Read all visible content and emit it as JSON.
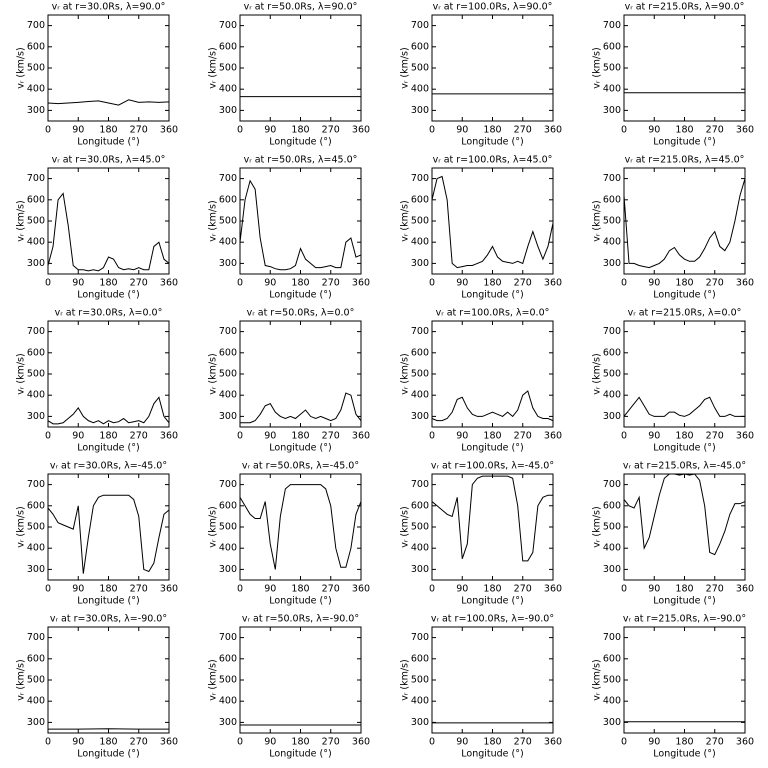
{
  "chart_data": [
    {
      "type": "line",
      "title": "vᵣ at r=30.0Rs, λ=90.0°",
      "x_label": "Longitude (°)",
      "y_label": "vᵣ (km/s)",
      "x": [
        0,
        30,
        60,
        90,
        120,
        150,
        180,
        210,
        240,
        270,
        300,
        330,
        360
      ],
      "values": [
        335,
        332,
        335,
        338,
        342,
        345,
        335,
        325,
        350,
        338,
        340,
        338,
        340
      ],
      "color": "#000000",
      "xlim": [
        0,
        360
      ],
      "ylim": [
        250,
        750
      ],
      "xticks": [
        0,
        90,
        180,
        270,
        360
      ],
      "yticks": [
        300,
        400,
        500,
        600,
        700
      ]
    },
    {
      "type": "line",
      "title": "vᵣ at r=50.0Rs, λ=90.0°",
      "x_label": "Longitude (°)",
      "y_label": "vᵣ (km/s)",
      "x": [
        0,
        360
      ],
      "values": [
        365,
        365
      ],
      "color": "#000000",
      "xlim": [
        0,
        360
      ],
      "ylim": [
        250,
        750
      ],
      "xticks": [
        0,
        90,
        180,
        270,
        360
      ],
      "yticks": [
        300,
        400,
        500,
        600,
        700
      ]
    },
    {
      "type": "line",
      "title": "vᵣ at r=100.0Rs, λ=90.0°",
      "x_label": "Longitude (°)",
      "y_label": "vᵣ (km/s)",
      "x": [
        0,
        360
      ],
      "values": [
        378,
        378
      ],
      "color": "#000000",
      "xlim": [
        0,
        360
      ],
      "ylim": [
        250,
        750
      ],
      "xticks": [
        0,
        90,
        180,
        270,
        360
      ],
      "yticks": [
        300,
        400,
        500,
        600,
        700
      ]
    },
    {
      "type": "line",
      "title": "vᵣ at r=215.0Rs, λ=90.0°",
      "x_label": "Longitude (°)",
      "y_label": "vᵣ (km/s)",
      "x": [
        0,
        360
      ],
      "values": [
        383,
        383
      ],
      "color": "#000000",
      "xlim": [
        0,
        360
      ],
      "ylim": [
        250,
        750
      ],
      "xticks": [
        0,
        90,
        180,
        270,
        360
      ],
      "yticks": [
        300,
        400,
        500,
        600,
        700
      ]
    },
    {
      "type": "line",
      "title": "vᵣ at r=30.0Rs, λ=45.0°",
      "x_label": "Longitude (°)",
      "y_label": "vᵣ (km/s)",
      "x": [
        0,
        15,
        30,
        45,
        60,
        75,
        90,
        105,
        120,
        135,
        150,
        165,
        180,
        195,
        210,
        225,
        240,
        255,
        270,
        285,
        300,
        315,
        330,
        345,
        360
      ],
      "values": [
        290,
        380,
        600,
        630,
        480,
        290,
        270,
        270,
        265,
        270,
        265,
        280,
        330,
        320,
        280,
        270,
        275,
        270,
        280,
        270,
        270,
        380,
        400,
        320,
        300
      ],
      "color": "#000000",
      "xlim": [
        0,
        360
      ],
      "ylim": [
        250,
        750
      ],
      "xticks": [
        0,
        90,
        180,
        270,
        360
      ],
      "yticks": [
        300,
        400,
        500,
        600,
        700
      ]
    },
    {
      "type": "line",
      "title": "vᵣ at r=50.0Rs, λ=45.0°",
      "x_label": "Longitude (°)",
      "y_label": "vᵣ (km/s)",
      "x": [
        0,
        15,
        30,
        45,
        60,
        75,
        90,
        105,
        120,
        135,
        150,
        165,
        180,
        195,
        210,
        225,
        240,
        255,
        270,
        285,
        300,
        315,
        330,
        345,
        360
      ],
      "values": [
        400,
        600,
        690,
        650,
        420,
        290,
        285,
        275,
        270,
        270,
        275,
        290,
        370,
        320,
        300,
        280,
        280,
        285,
        290,
        280,
        280,
        400,
        420,
        330,
        340
      ],
      "color": "#000000",
      "xlim": [
        0,
        360
      ],
      "ylim": [
        250,
        750
      ],
      "xticks": [
        0,
        90,
        180,
        270,
        360
      ],
      "yticks": [
        300,
        400,
        500,
        600,
        700
      ]
    },
    {
      "type": "line",
      "title": "vᵣ at r=100.0Rs, λ=45.0°",
      "x_label": "Longitude (°)",
      "y_label": "vᵣ (km/s)",
      "x": [
        0,
        15,
        30,
        45,
        60,
        75,
        90,
        105,
        120,
        135,
        150,
        165,
        180,
        195,
        210,
        225,
        240,
        255,
        270,
        285,
        300,
        315,
        330,
        345,
        360
      ],
      "values": [
        600,
        700,
        710,
        600,
        300,
        280,
        285,
        290,
        290,
        300,
        310,
        340,
        380,
        330,
        310,
        305,
        300,
        310,
        300,
        380,
        450,
        380,
        320,
        380,
        490
      ],
      "color": "#000000",
      "xlim": [
        0,
        360
      ],
      "ylim": [
        250,
        750
      ],
      "xticks": [
        0,
        90,
        180,
        270,
        360
      ],
      "yticks": [
        300,
        400,
        500,
        600,
        700
      ]
    },
    {
      "type": "line",
      "title": "vᵣ at r=215.0Rs, λ=45.0°",
      "x_label": "Longitude (°)",
      "y_label": "vᵣ (km/s)",
      "x": [
        0,
        15,
        30,
        45,
        60,
        75,
        90,
        105,
        120,
        135,
        150,
        165,
        180,
        195,
        210,
        225,
        240,
        255,
        270,
        285,
        300,
        315,
        330,
        345,
        360
      ],
      "values": [
        620,
        300,
        300,
        290,
        285,
        280,
        290,
        300,
        320,
        360,
        375,
        340,
        320,
        310,
        310,
        330,
        370,
        420,
        450,
        380,
        360,
        400,
        500,
        620,
        700
      ],
      "color": "#000000",
      "xlim": [
        0,
        360
      ],
      "ylim": [
        250,
        750
      ],
      "xticks": [
        0,
        90,
        180,
        270,
        360
      ],
      "yticks": [
        300,
        400,
        500,
        600,
        700
      ]
    },
    {
      "type": "line",
      "title": "vᵣ at r=30.0Rs, λ=0.0°",
      "x_label": "Longitude (°)",
      "y_label": "vᵣ (km/s)",
      "x": [
        0,
        15,
        30,
        45,
        60,
        75,
        90,
        105,
        120,
        135,
        150,
        165,
        180,
        195,
        210,
        225,
        240,
        255,
        270,
        285,
        300,
        315,
        330,
        345,
        360
      ],
      "values": [
        280,
        265,
        265,
        270,
        290,
        310,
        340,
        300,
        280,
        270,
        280,
        265,
        280,
        270,
        275,
        290,
        270,
        275,
        280,
        270,
        300,
        360,
        390,
        300,
        270
      ],
      "color": "#000000",
      "xlim": [
        0,
        360
      ],
      "ylim": [
        250,
        750
      ],
      "xticks": [
        0,
        90,
        180,
        270,
        360
      ],
      "yticks": [
        300,
        400,
        500,
        600,
        700
      ]
    },
    {
      "type": "line",
      "title": "vᵣ at r=50.0Rs, λ=0.0°",
      "x_label": "Longitude (°)",
      "y_label": "vᵣ (km/s)",
      "x": [
        0,
        15,
        30,
        45,
        60,
        75,
        90,
        105,
        120,
        135,
        150,
        165,
        180,
        195,
        210,
        225,
        240,
        255,
        270,
        285,
        300,
        315,
        330,
        345,
        360
      ],
      "values": [
        270,
        270,
        270,
        280,
        310,
        350,
        360,
        320,
        300,
        290,
        300,
        290,
        310,
        330,
        300,
        290,
        300,
        290,
        280,
        290,
        330,
        410,
        400,
        310,
        280
      ],
      "color": "#000000",
      "xlim": [
        0,
        360
      ],
      "ylim": [
        250,
        750
      ],
      "xticks": [
        0,
        90,
        180,
        270,
        360
      ],
      "yticks": [
        300,
        400,
        500,
        600,
        700
      ]
    },
    {
      "type": "line",
      "title": "vᵣ at r=100.0Rs, λ=0.0°",
      "x_label": "Longitude (°)",
      "y_label": "vᵣ (km/s)",
      "x": [
        0,
        15,
        30,
        45,
        60,
        75,
        90,
        105,
        120,
        135,
        150,
        165,
        180,
        195,
        210,
        225,
        240,
        255,
        270,
        285,
        300,
        315,
        330,
        345,
        360
      ],
      "values": [
        290,
        280,
        280,
        290,
        320,
        380,
        390,
        340,
        310,
        300,
        300,
        310,
        320,
        310,
        300,
        320,
        300,
        330,
        400,
        420,
        340,
        300,
        290,
        290,
        280
      ],
      "color": "#000000",
      "xlim": [
        0,
        360
      ],
      "ylim": [
        250,
        750
      ],
      "xticks": [
        0,
        90,
        180,
        270,
        360
      ],
      "yticks": [
        300,
        400,
        500,
        600,
        700
      ]
    },
    {
      "type": "line",
      "title": "vᵣ at r=215.0Rs, λ=0.0°",
      "x_label": "Longitude (°)",
      "y_label": "vᵣ (km/s)",
      "x": [
        0,
        15,
        30,
        45,
        60,
        75,
        90,
        105,
        120,
        135,
        150,
        165,
        180,
        195,
        210,
        225,
        240,
        255,
        270,
        285,
        300,
        315,
        330,
        345,
        360
      ],
      "values": [
        300,
        330,
        360,
        390,
        350,
        310,
        300,
        300,
        300,
        320,
        320,
        305,
        300,
        310,
        330,
        350,
        380,
        390,
        340,
        300,
        300,
        310,
        300,
        300,
        300
      ],
      "color": "#000000",
      "xlim": [
        0,
        360
      ],
      "ylim": [
        250,
        750
      ],
      "xticks": [
        0,
        90,
        180,
        270,
        360
      ],
      "yticks": [
        300,
        400,
        500,
        600,
        700
      ]
    },
    {
      "type": "line",
      "title": "vᵣ at r=30.0Rs, λ=-45.0°",
      "x_label": "Longitude (°)",
      "y_label": "vᵣ (km/s)",
      "x": [
        0,
        15,
        30,
        45,
        60,
        75,
        90,
        105,
        120,
        135,
        150,
        165,
        180,
        195,
        210,
        225,
        240,
        255,
        270,
        285,
        300,
        315,
        330,
        345,
        360
      ],
      "values": [
        590,
        560,
        520,
        510,
        500,
        490,
        600,
        280,
        450,
        600,
        640,
        650,
        650,
        650,
        650,
        650,
        650,
        630,
        550,
        300,
        290,
        330,
        450,
        560,
        580
      ],
      "color": "#000000",
      "xlim": [
        0,
        360
      ],
      "ylim": [
        250,
        750
      ],
      "xticks": [
        0,
        90,
        180,
        270,
        360
      ],
      "yticks": [
        300,
        400,
        500,
        600,
        700
      ]
    },
    {
      "type": "line",
      "title": "vᵣ at r=50.0Rs, λ=-45.0°",
      "x_label": "Longitude (°)",
      "y_label": "vᵣ (km/s)",
      "x": [
        0,
        15,
        30,
        45,
        60,
        75,
        90,
        105,
        120,
        135,
        150,
        165,
        180,
        195,
        210,
        225,
        240,
        255,
        270,
        285,
        300,
        315,
        330,
        345,
        360
      ],
      "values": [
        640,
        600,
        560,
        540,
        540,
        620,
        420,
        300,
        550,
        680,
        700,
        700,
        700,
        700,
        700,
        700,
        700,
        680,
        600,
        400,
        310,
        310,
        400,
        560,
        620
      ],
      "color": "#000000",
      "xlim": [
        0,
        360
      ],
      "ylim": [
        250,
        750
      ],
      "xticks": [
        0,
        90,
        180,
        270,
        360
      ],
      "yticks": [
        300,
        400,
        500,
        600,
        700
      ]
    },
    {
      "type": "line",
      "title": "vᵣ at r=100.0Rs, λ=-45.0°",
      "x_label": "Longitude (°)",
      "y_label": "vᵣ (km/s)",
      "x": [
        0,
        15,
        30,
        45,
        60,
        75,
        90,
        105,
        120,
        135,
        150,
        165,
        180,
        195,
        210,
        225,
        240,
        255,
        270,
        285,
        300,
        315,
        330,
        345,
        360
      ],
      "values": [
        620,
        600,
        580,
        560,
        550,
        640,
        350,
        420,
        700,
        730,
        740,
        740,
        740,
        740,
        740,
        740,
        730,
        600,
        340,
        340,
        380,
        600,
        640,
        650,
        650
      ],
      "color": "#000000",
      "xlim": [
        0,
        360
      ],
      "ylim": [
        250,
        750
      ],
      "xticks": [
        0,
        90,
        180,
        270,
        360
      ],
      "yticks": [
        300,
        400,
        500,
        600,
        700
      ]
    },
    {
      "type": "line",
      "title": "vᵣ at r=215.0Rs, λ=-45.0°",
      "x_label": "Longitude (°)",
      "y_label": "vᵣ (km/s)",
      "x": [
        0,
        15,
        30,
        45,
        60,
        75,
        90,
        105,
        120,
        135,
        150,
        165,
        180,
        195,
        210,
        225,
        240,
        255,
        270,
        285,
        300,
        315,
        330,
        345,
        360
      ],
      "values": [
        630,
        600,
        590,
        640,
        400,
        450,
        550,
        650,
        730,
        750,
        750,
        745,
        750,
        745,
        750,
        720,
        600,
        380,
        370,
        420,
        480,
        560,
        610,
        610,
        620
      ],
      "color": "#000000",
      "xlim": [
        0,
        360
      ],
      "ylim": [
        250,
        750
      ],
      "xticks": [
        0,
        90,
        180,
        270,
        360
      ],
      "yticks": [
        300,
        400,
        500,
        600,
        700
      ]
    },
    {
      "type": "line",
      "title": "vᵣ at r=30.0Rs, λ=-90.0°",
      "x_label": "Longitude (°)",
      "y_label": "vᵣ (km/s)",
      "x": [
        0,
        90,
        180,
        270,
        360
      ],
      "values": [
        268,
        268,
        270,
        268,
        268
      ],
      "color": "#000000",
      "xlim": [
        0,
        360
      ],
      "ylim": [
        250,
        750
      ],
      "xticks": [
        0,
        90,
        180,
        270,
        360
      ],
      "yticks": [
        300,
        400,
        500,
        600,
        700
      ]
    },
    {
      "type": "line",
      "title": "vᵣ at r=50.0Rs, λ=-90.0°",
      "x_label": "Longitude (°)",
      "y_label": "vᵣ (km/s)",
      "x": [
        0,
        360
      ],
      "values": [
        288,
        288
      ],
      "color": "#000000",
      "xlim": [
        0,
        360
      ],
      "ylim": [
        250,
        750
      ],
      "xticks": [
        0,
        90,
        180,
        270,
        360
      ],
      "yticks": [
        300,
        400,
        500,
        600,
        700
      ]
    },
    {
      "type": "line",
      "title": "vᵣ at r=100.0Rs, λ=-90.0°",
      "x_label": "Longitude (°)",
      "y_label": "vᵣ (km/s)",
      "x": [
        0,
        360
      ],
      "values": [
        298,
        298
      ],
      "color": "#000000",
      "xlim": [
        0,
        360
      ],
      "ylim": [
        250,
        750
      ],
      "xticks": [
        0,
        90,
        180,
        270,
        360
      ],
      "yticks": [
        300,
        400,
        500,
        600,
        700
      ]
    },
    {
      "type": "line",
      "title": "vᵣ at r=215.0Rs, λ=-90.0°",
      "x_label": "Longitude (°)",
      "y_label": "vᵣ (km/s)",
      "x": [
        0,
        360
      ],
      "values": [
        303,
        303
      ],
      "color": "#000000",
      "xlim": [
        0,
        360
      ],
      "ylim": [
        250,
        750
      ],
      "xticks": [
        0,
        90,
        180,
        270,
        360
      ],
      "yticks": [
        300,
        400,
        500,
        600,
        700
      ]
    }
  ]
}
